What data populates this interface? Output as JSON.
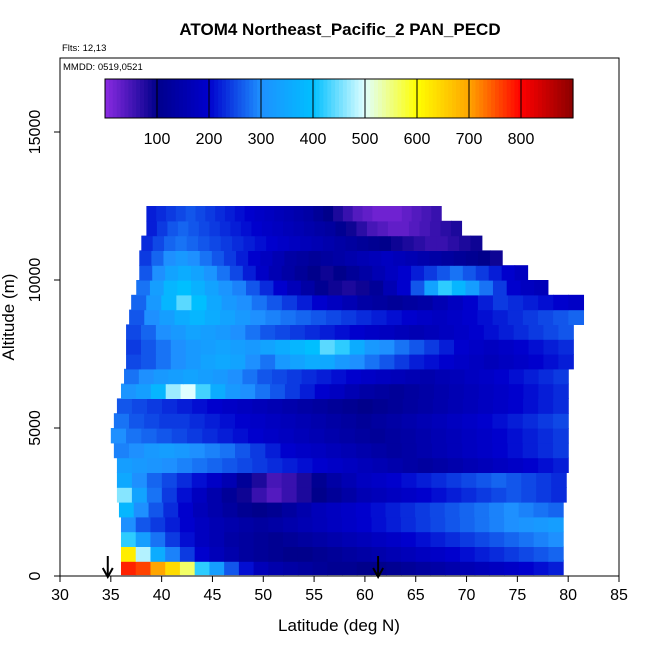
{
  "chart_data": {
    "type": "heatmap",
    "title": "ATOM4 Northeast_Pacific_2 PAN_PECD",
    "flights_note": "Flts: 12,13",
    "date_note": "MMDD: 0519,0521",
    "xlabel": "Latitude (deg N)",
    "ylabel": "Altitude (m)",
    "xlim": [
      30,
      85
    ],
    "ylim": [
      0,
      17500
    ],
    "xticks": [
      "30",
      "35",
      "40",
      "45",
      "50",
      "55",
      "60",
      "65",
      "70",
      "75",
      "80",
      "85"
    ],
    "yticks": [
      "0",
      "5000",
      "10000",
      "15000"
    ],
    "colorbar": {
      "range": [
        0,
        900
      ],
      "tick_labels": [
        "100",
        "200",
        "300",
        "400",
        "500",
        "600",
        "700",
        "800"
      ],
      "colors": [
        "#8b2be2",
        "#00008b",
        "#0000cd",
        "#1e90ff",
        "#00bfff",
        "#e0ffff",
        "#ffff00",
        "#ffa500",
        "#ff0000",
        "#8b0000"
      ]
    },
    "arrows_latitude": [
      34.7,
      61.3
    ],
    "altitude_bins": [
      {
        "alt": 300,
        "lat_min": 36,
        "lat_max": 79.5,
        "values": [
          780,
          760,
          700,
          640,
          560,
          420,
          330,
          260,
          210,
          170,
          150,
          140,
          130,
          120,
          110,
          110,
          100,
          100,
          110,
          120,
          130,
          140,
          150,
          160,
          170,
          180,
          190,
          200,
          210,
          220
        ]
      },
      {
        "alt": 750,
        "lat_min": 36,
        "lat_max": 79.5,
        "values": [
          620,
          480,
          360,
          290,
          240,
          200,
          170,
          150,
          130,
          120,
          110,
          100,
          100,
          110,
          120,
          130,
          140,
          150,
          160,
          170,
          180,
          190,
          200,
          210,
          220,
          230,
          240,
          250,
          260,
          270
        ]
      },
      {
        "alt": 1250,
        "lat_min": 36,
        "lat_max": 79.5,
        "values": [
          420,
          330,
          280,
          240,
          210,
          180,
          160,
          140,
          130,
          120,
          110,
          120,
          130,
          140,
          150,
          160,
          170,
          180,
          190,
          200,
          210,
          220,
          230,
          240,
          250,
          260,
          270,
          280,
          290,
          300
        ]
      },
      {
        "alt": 1750,
        "lat_min": 36,
        "lat_max": 79.5,
        "values": [
          300,
          260,
          240,
          220,
          200,
          180,
          160,
          150,
          140,
          130,
          140,
          150,
          160,
          170,
          180,
          190,
          200,
          210,
          220,
          230,
          240,
          250,
          260,
          270,
          280,
          290,
          300,
          310,
          320,
          330
        ]
      },
      {
        "alt": 2250,
        "lat_min": 35.8,
        "lat_max": 79.5,
        "values": [
          380,
          300,
          260,
          230,
          200,
          170,
          150,
          130,
          110,
          100,
          110,
          130,
          150,
          170,
          180,
          190,
          200,
          210,
          220,
          230,
          240,
          250,
          260,
          270,
          280,
          290,
          300,
          290,
          280,
          270
        ]
      },
      {
        "alt": 2750,
        "lat_min": 35.6,
        "lat_max": 79.8,
        "values": [
          460,
          340,
          280,
          240,
          210,
          180,
          150,
          120,
          90,
          60,
          40,
          60,
          80,
          100,
          120,
          140,
          160,
          170,
          180,
          190,
          200,
          210,
          220,
          230,
          240,
          250,
          260,
          250,
          240,
          230
        ]
      },
      {
        "alt": 3250,
        "lat_min": 35.6,
        "lat_max": 79.8,
        "values": [
          350,
          300,
          270,
          250,
          230,
          210,
          190,
          160,
          120,
          80,
          50,
          60,
          80,
          110,
          140,
          160,
          180,
          190,
          200,
          210,
          220,
          230,
          240,
          250,
          260,
          270,
          260,
          250,
          240,
          230
        ]
      },
      {
        "alt": 3750,
        "lat_min": 35.6,
        "lat_max": 80.0,
        "values": [
          330,
          320,
          310,
          300,
          290,
          280,
          270,
          260,
          250,
          240,
          230,
          220,
          210,
          200,
          190,
          180,
          170,
          160,
          150,
          140,
          130,
          140,
          150,
          160,
          170,
          180,
          190,
          200,
          210,
          220
        ]
      },
      {
        "alt": 4250,
        "lat_min": 35.3,
        "lat_max": 80.0,
        "values": [
          290,
          300,
          320,
          330,
          320,
          300,
          290,
          280,
          260,
          240,
          220,
          200,
          190,
          180,
          170,
          160,
          150,
          140,
          130,
          140,
          150,
          160,
          170,
          180,
          190,
          200,
          210,
          220,
          230,
          240
        ]
      },
      {
        "alt": 4750,
        "lat_min": 35.0,
        "lat_max": 80.0,
        "values": [
          300,
          280,
          270,
          260,
          250,
          240,
          230,
          220,
          210,
          200,
          190,
          180,
          170,
          160,
          150,
          140,
          130,
          120,
          130,
          140,
          150,
          160,
          170,
          180,
          190,
          200,
          210,
          220,
          230,
          240
        ]
      },
      {
        "alt": 5250,
        "lat_min": 35.3,
        "lat_max": 80.0,
        "values": [
          280,
          260,
          250,
          240,
          240,
          230,
          220,
          210,
          200,
          190,
          180,
          170,
          160,
          150,
          140,
          130,
          120,
          130,
          140,
          150,
          160,
          170,
          180,
          190,
          200,
          210,
          220,
          230,
          240,
          250
        ]
      },
      {
        "alt": 5750,
        "lat_min": 35.6,
        "lat_max": 80.0,
        "values": [
          260,
          250,
          240,
          230,
          220,
          210,
          200,
          190,
          180,
          170,
          160,
          150,
          140,
          130,
          120,
          110,
          100,
          110,
          120,
          130,
          140,
          150,
          160,
          170,
          180,
          190,
          200,
          210,
          220,
          230
        ]
      },
      {
        "alt": 6250,
        "lat_min": 36.0,
        "lat_max": 80.0,
        "values": [
          310,
          330,
          380,
          470,
          500,
          430,
          360,
          320,
          300,
          280,
          260,
          240,
          220,
          200,
          180,
          160,
          140,
          130,
          120,
          130,
          140,
          150,
          160,
          170,
          180,
          190,
          200,
          210,
          220,
          230
        ]
      },
      {
        "alt": 6750,
        "lat_min": 36.3,
        "lat_max": 80.0,
        "values": [
          280,
          300,
          320,
          330,
          340,
          330,
          320,
          300,
          280,
          260,
          250,
          240,
          230,
          220,
          210,
          200,
          190,
          180,
          170,
          160,
          150,
          160,
          170,
          180,
          190,
          200,
          210,
          220,
          230,
          240
        ]
      },
      {
        "alt": 7250,
        "lat_min": 36.5,
        "lat_max": 80.5,
        "values": [
          250,
          260,
          280,
          300,
          320,
          340,
          350,
          340,
          300,
          280,
          320,
          340,
          360,
          350,
          320,
          300,
          280,
          260,
          240,
          220,
          210,
          200,
          190,
          180,
          170,
          180,
          190,
          200,
          210,
          220
        ]
      },
      {
        "alt": 7750,
        "lat_min": 36.5,
        "lat_max": 80.5,
        "values": [
          240,
          260,
          280,
          300,
          320,
          330,
          340,
          330,
          320,
          340,
          360,
          380,
          400,
          440,
          420,
          360,
          320,
          300,
          280,
          260,
          240,
          220,
          200,
          190,
          180,
          190,
          200,
          210,
          220,
          230
        ]
      },
      {
        "alt": 8250,
        "lat_min": 36.5,
        "lat_max": 80.5,
        "values": [
          250,
          270,
          300,
          320,
          340,
          330,
          320,
          300,
          280,
          260,
          250,
          240,
          230,
          220,
          210,
          200,
          190,
          180,
          170,
          160,
          170,
          180,
          190,
          200,
          210,
          220,
          230,
          240,
          250,
          260
        ]
      },
      {
        "alt": 8750,
        "lat_min": 36.8,
        "lat_max": 81.5,
        "values": [
          260,
          300,
          330,
          360,
          380,
          360,
          340,
          320,
          300,
          290,
          280,
          270,
          260,
          250,
          240,
          230,
          220,
          210,
          200,
          190,
          180,
          190,
          200,
          210,
          220,
          230,
          240,
          250,
          260,
          270
        ]
      },
      {
        "alt": 9250,
        "lat_min": 37.0,
        "lat_max": 81.5,
        "values": [
          270,
          320,
          380,
          440,
          400,
          350,
          320,
          300,
          280,
          260,
          240,
          220,
          200,
          180,
          160,
          140,
          130,
          120,
          130,
          140,
          160,
          180,
          200,
          220,
          240,
          230,
          220,
          210,
          200,
          190
        ]
      },
      {
        "alt": 9750,
        "lat_min": 37.5,
        "lat_max": 78.0,
        "values": [
          280,
          330,
          380,
          400,
          370,
          340,
          310,
          290,
          260,
          230,
          200,
          170,
          140,
          110,
          90,
          80,
          90,
          120,
          160,
          200,
          260,
          340,
          420,
          380,
          330,
          280,
          240,
          200,
          180,
          170
        ]
      },
      {
        "alt": 10250,
        "lat_min": 37.8,
        "lat_max": 76.0,
        "values": [
          260,
          300,
          340,
          360,
          340,
          310,
          280,
          250,
          220,
          190,
          160,
          140,
          120,
          100,
          90,
          100,
          120,
          140,
          160,
          180,
          200,
          220,
          240,
          260,
          280,
          260,
          240,
          220,
          200,
          180
        ]
      },
      {
        "alt": 10750,
        "lat_min": 37.8,
        "lat_max": 73.5,
        "values": [
          240,
          270,
          300,
          320,
          300,
          280,
          260,
          240,
          220,
          200,
          180,
          160,
          140,
          130,
          120,
          130,
          140,
          150,
          160,
          170,
          180,
          170,
          160,
          150,
          140,
          130,
          120,
          110,
          100,
          90
        ]
      },
      {
        "alt": 11250,
        "lat_min": 38.0,
        "lat_max": 71.5,
        "values": [
          230,
          250,
          270,
          280,
          270,
          260,
          250,
          240,
          230,
          220,
          210,
          200,
          190,
          180,
          170,
          160,
          150,
          140,
          130,
          120,
          110,
          100,
          90,
          80,
          70,
          60,
          60,
          70,
          80,
          90
        ]
      },
      {
        "alt": 11750,
        "lat_min": 38.5,
        "lat_max": 69.5,
        "values": [
          220,
          240,
          260,
          270,
          260,
          250,
          240,
          230,
          220,
          210,
          200,
          190,
          180,
          170,
          160,
          150,
          140,
          130,
          110,
          90,
          70,
          50,
          40,
          30,
          30,
          40,
          50,
          60,
          70,
          80
        ]
      },
      {
        "alt": 12250,
        "lat_min": 38.5,
        "lat_max": 67.5,
        "values": [
          220,
          230,
          240,
          250,
          260,
          250,
          240,
          230,
          220,
          210,
          200,
          190,
          180,
          170,
          160,
          150,
          140,
          120,
          100,
          80,
          60,
          40,
          30,
          20,
          20,
          20,
          30,
          40,
          50,
          60
        ]
      }
    ]
  }
}
